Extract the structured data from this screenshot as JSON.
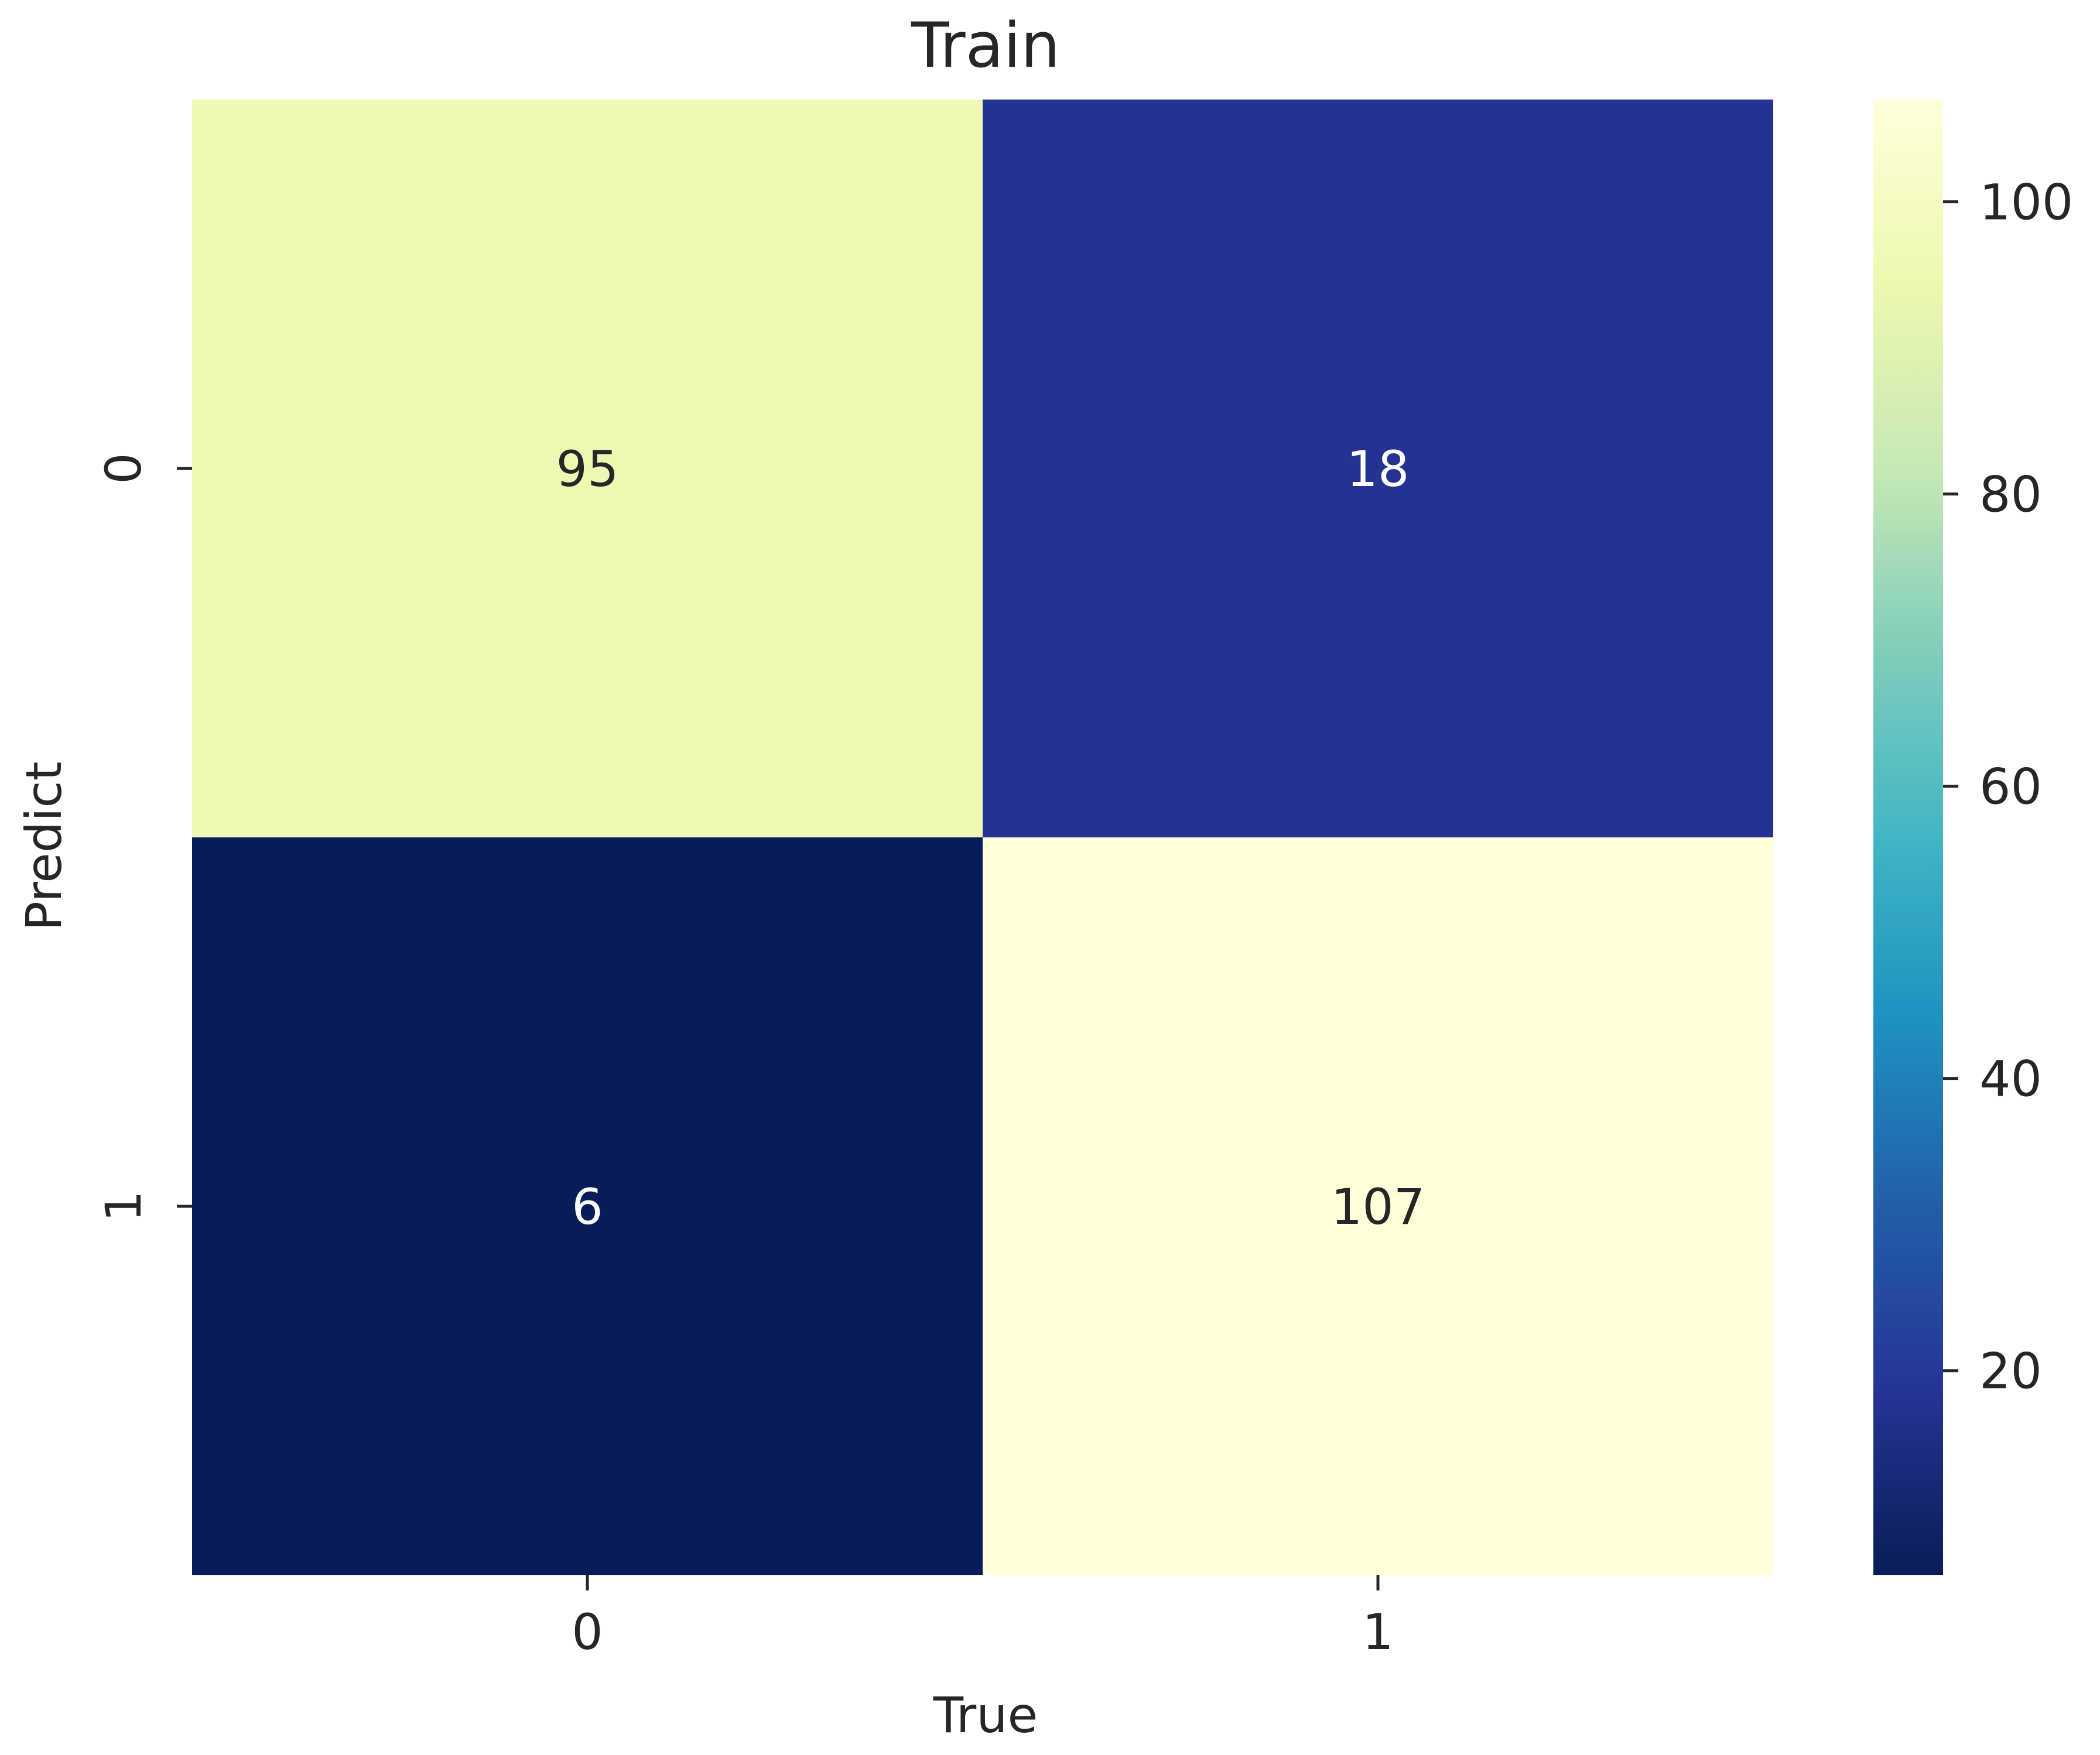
{
  "chart_data": {
    "type": "heatmap",
    "title": "Train",
    "xlabel": "True",
    "ylabel": "Predict",
    "x_categories": [
      "0",
      "1"
    ],
    "y_categories": [
      "0",
      "1"
    ],
    "values": [
      [
        95,
        18
      ],
      [
        6,
        107
      ]
    ],
    "colormap": "YlGnBu",
    "color_range": [
      6,
      107
    ],
    "colorbar_ticks": [
      20,
      40,
      60,
      80,
      100
    ],
    "colorbar_tick_labels": [
      "20",
      "40",
      "60",
      "80",
      "100"
    ],
    "annotation_colors": {
      "light_cells": "#262626",
      "dark_cells": "#ffffff"
    }
  }
}
